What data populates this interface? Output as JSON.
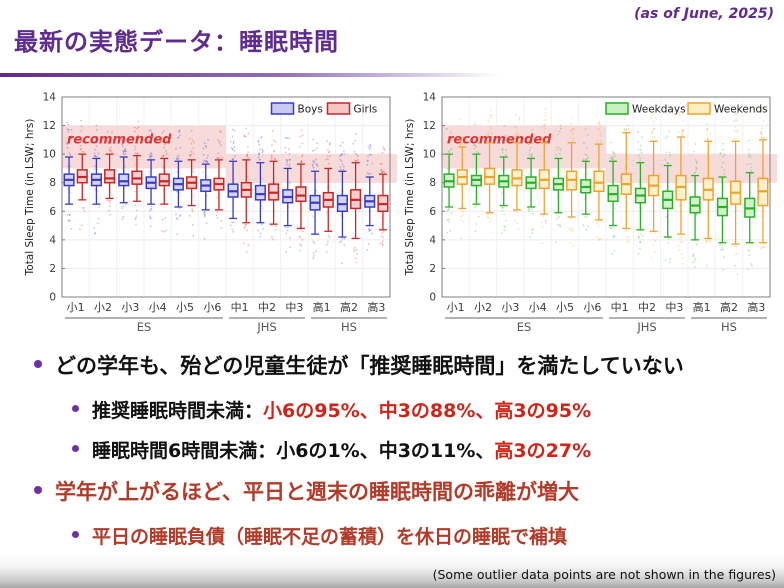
{
  "slide": {
    "title": "最新の実態データ：睡眠時間",
    "as_of": "(as of June, 2025)",
    "footer_note": "(Some outlier data points are not shown in the figures)"
  },
  "colors": {
    "title_purple": "#5f2b90",
    "bullet_dot": "#7030a0",
    "text_black": "#111111",
    "accent_red": "#cf2417",
    "dark_red": "#b23a28",
    "recommended_band": "#f6d5d5",
    "recommended_text": "#e03535",
    "boys_stroke": "#3a3ac8",
    "boys_fill": "#c9c9f2",
    "girls_stroke": "#cc2424",
    "girls_fill": "#f5c6c6",
    "weekdays_stroke": "#27b127",
    "weekdays_fill": "#c9eec2",
    "weekends_stroke": "#efa32c",
    "weekends_fill": "#fdeec2"
  },
  "bullets": [
    {
      "level": 1,
      "segments": [
        {
          "text": "どの学年も、殆どの児童生徒が「推奨睡眠時間」を満たしていない",
          "color": "black"
        }
      ]
    },
    {
      "level": 2,
      "segments": [
        {
          "text": "推奨睡眠時間未満：",
          "color": "black"
        },
        {
          "text": "小6の95%、中3の88%、高3の95%",
          "color": "red"
        }
      ]
    },
    {
      "level": 2,
      "segments": [
        {
          "text": "睡眠時間6時間未満：",
          "color": "black"
        },
        {
          "text": "小6の1%、中3の11%、",
          "color": "black"
        },
        {
          "text": "高3の27%",
          "color": "red"
        }
      ]
    },
    {
      "level": 1,
      "segments": [
        {
          "text": "学年が上がるほど、平日と週末の睡眠時間の乖離が増大",
          "color": "darkred"
        }
      ]
    },
    {
      "level": 2,
      "segments": [
        {
          "text": "平日の睡眠負債（睡眠不足の蓄積）を休日の睡眠で補填",
          "color": "darkred"
        }
      ]
    }
  ],
  "chart_data": [
    {
      "name": "sleep-time-by-sex",
      "type": "box",
      "ylabel": "Total Sleep Time (in LSW; hrs)",
      "ylim": [
        0,
        14
      ],
      "yticks": [
        0,
        2,
        4,
        6,
        8,
        10,
        12,
        14
      ],
      "categories": [
        "小1",
        "小2",
        "小3",
        "小4",
        "小5",
        "小6",
        "中1",
        "中2",
        "中3",
        "高1",
        "高2",
        "高3"
      ],
      "groups": [
        {
          "label": "ES",
          "from": 0,
          "to": 5
        },
        {
          "label": "JHS",
          "from": 6,
          "to": 8
        },
        {
          "label": "HS",
          "from": 9,
          "to": 11
        }
      ],
      "recommended_bands": [
        {
          "from_cat": 0,
          "to_cat": 5,
          "y_from": 9,
          "y_to": 12
        },
        {
          "from_cat": 6,
          "to_cat": 11,
          "y_from": 8,
          "y_to": 10
        }
      ],
      "recommended_label": "recommended",
      "legend_position": "top-right",
      "series": [
        {
          "name": "Boys",
          "color_key": "boys",
          "boxes": [
            [
              6.5,
              7.8,
              8.2,
              8.6,
              9.8
            ],
            [
              6.5,
              7.8,
              8.2,
              8.6,
              9.7
            ],
            [
              6.6,
              7.8,
              8.1,
              8.6,
              9.8
            ],
            [
              6.5,
              7.6,
              8.0,
              8.4,
              9.6
            ],
            [
              6.3,
              7.5,
              7.9,
              8.3,
              9.5
            ],
            [
              6.1,
              7.4,
              7.8,
              8.2,
              9.3
            ],
            [
              5.5,
              7.0,
              7.4,
              7.9,
              9.5
            ],
            [
              5.2,
              6.8,
              7.2,
              7.8,
              9.4
            ],
            [
              5.0,
              6.6,
              7.0,
              7.5,
              9.0
            ],
            [
              4.4,
              6.1,
              6.6,
              7.1,
              8.8
            ],
            [
              4.2,
              6.0,
              6.5,
              7.1,
              8.8
            ],
            [
              5.0,
              6.3,
              6.7,
              7.1,
              8.4
            ]
          ]
        },
        {
          "name": "Girls",
          "color_key": "girls",
          "boxes": [
            [
              6.8,
              8.0,
              8.4,
              8.9,
              10.0
            ],
            [
              6.9,
              8.0,
              8.3,
              8.9,
              10.0
            ],
            [
              6.7,
              7.9,
              8.3,
              8.8,
              9.9
            ],
            [
              6.5,
              7.8,
              8.1,
              8.6,
              9.7
            ],
            [
              6.4,
              7.6,
              8.0,
              8.4,
              9.6
            ],
            [
              6.1,
              7.5,
              7.9,
              8.3,
              9.6
            ],
            [
              5.2,
              7.0,
              7.5,
              8.0,
              9.6
            ],
            [
              5.1,
              6.8,
              7.3,
              7.9,
              9.5
            ],
            [
              4.8,
              6.7,
              7.1,
              7.7,
              9.3
            ],
            [
              4.6,
              6.3,
              6.8,
              7.3,
              9.0
            ],
            [
              4.1,
              6.2,
              6.8,
              7.5,
              9.4
            ],
            [
              4.7,
              6.0,
              6.5,
              7.1,
              8.6
            ]
          ]
        }
      ]
    },
    {
      "name": "sleep-time-weekday-weekend",
      "type": "box",
      "ylabel": "Total Sleep Time (in LSW; hrs)",
      "ylim": [
        0,
        14
      ],
      "yticks": [
        0,
        2,
        4,
        6,
        8,
        10,
        12,
        14
      ],
      "categories": [
        "小1",
        "小2",
        "小3",
        "小4",
        "小5",
        "小6",
        "中1",
        "中2",
        "中3",
        "高1",
        "高2",
        "高3"
      ],
      "groups": [
        {
          "label": "ES",
          "from": 0,
          "to": 5
        },
        {
          "label": "JHS",
          "from": 6,
          "to": 8
        },
        {
          "label": "HS",
          "from": 9,
          "to": 11
        }
      ],
      "recommended_bands": [
        {
          "from_cat": 0,
          "to_cat": 5,
          "y_from": 9,
          "y_to": 12
        },
        {
          "from_cat": 6,
          "to_cat": 11,
          "y_from": 8,
          "y_to": 10
        }
      ],
      "recommended_label": "recommended",
      "legend_position": "top-right",
      "series": [
        {
          "name": "Weekdays",
          "color_key": "weekdays",
          "boxes": [
            [
              6.3,
              7.7,
              8.1,
              8.6,
              10.0
            ],
            [
              6.5,
              7.8,
              8.2,
              8.5,
              10.0
            ],
            [
              6.4,
              7.7,
              8.1,
              8.5,
              9.8
            ],
            [
              6.3,
              7.6,
              8.0,
              8.4,
              9.7
            ],
            [
              5.9,
              7.5,
              7.9,
              8.3,
              9.7
            ],
            [
              5.8,
              7.3,
              7.7,
              8.2,
              9.5
            ],
            [
              5.0,
              6.7,
              7.2,
              7.8,
              9.5
            ],
            [
              4.7,
              6.6,
              7.1,
              7.6,
              9.4
            ],
            [
              4.2,
              6.2,
              6.8,
              7.4,
              9.2
            ],
            [
              4.0,
              5.9,
              6.4,
              7.0,
              8.5
            ],
            [
              3.8,
              5.7,
              6.3,
              6.9,
              8.4
            ],
            [
              3.8,
              5.6,
              6.2,
              6.9,
              8.7
            ]
          ]
        },
        {
          "name": "Weekends",
          "color_key": "weekends",
          "boxes": [
            [
              6.2,
              7.9,
              8.4,
              8.9,
              10.5
            ],
            [
              5.9,
              7.9,
              8.4,
              9.0,
              10.8
            ],
            [
              6.1,
              7.8,
              8.3,
              8.9,
              10.8
            ],
            [
              5.8,
              7.6,
              8.2,
              8.9,
              10.8
            ],
            [
              5.6,
              7.5,
              8.2,
              8.8,
              10.8
            ],
            [
              5.4,
              7.4,
              8.0,
              8.8,
              10.7
            ],
            [
              4.8,
              7.2,
              7.9,
              8.6,
              11.5
            ],
            [
              4.6,
              7.1,
              7.8,
              8.5,
              10.9
            ],
            [
              4.4,
              6.8,
              7.7,
              8.5,
              11.2
            ],
            [
              4.1,
              6.8,
              7.5,
              8.3,
              10.9
            ],
            [
              3.7,
              6.5,
              7.3,
              8.1,
              10.9
            ],
            [
              3.8,
              6.4,
              7.4,
              8.3,
              11.0
            ]
          ]
        }
      ]
    }
  ]
}
